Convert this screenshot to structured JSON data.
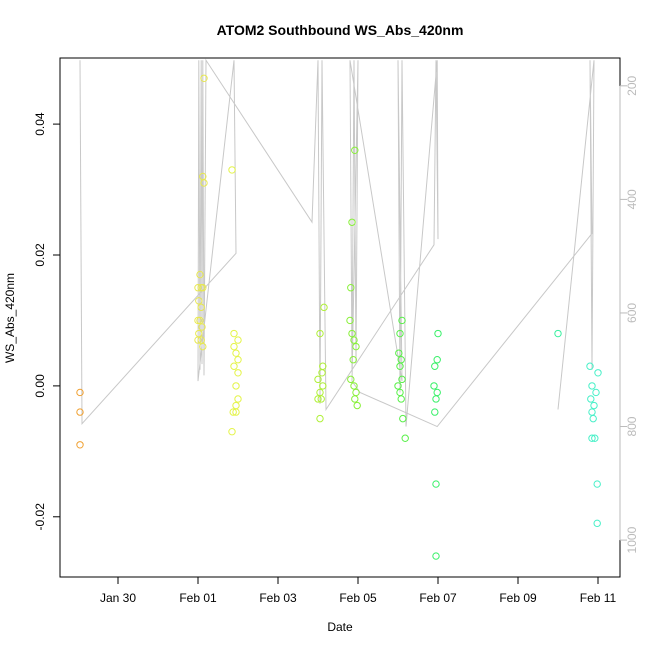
{
  "chart_data": {
    "type": "scatter",
    "title": "ATOM2 Southbound WS_Abs_420nm",
    "xlabel": "Date",
    "ylabel": "WS_Abs_420nm",
    "xlim": [
      28.55,
      42.55
    ],
    "xticks": [
      {
        "value": 30,
        "label": "Jan 30"
      },
      {
        "value": 32,
        "label": "Feb 01"
      },
      {
        "value": 34,
        "label": "Feb 03"
      },
      {
        "value": 36,
        "label": "Feb 05"
      },
      {
        "value": 38,
        "label": "Feb 07"
      },
      {
        "value": 40,
        "label": "Feb 09"
      },
      {
        "value": 42,
        "label": "Feb 11"
      }
    ],
    "ylim": [
      -0.0292,
      0.0501
    ],
    "yticks": [
      -0.02,
      {
        "value": 0,
        "label": "0.00"
      },
      0.02,
      0.04
    ],
    "y2lim": [
      1065,
      151
    ],
    "y2ticks": [
      200,
      400,
      600,
      800,
      1000
    ],
    "y2color": "#bbbbbb",
    "series": [
      {
        "color": "#f0a030",
        "x": [
          29.05,
          29.05,
          29.05
        ],
        "values": [
          -0.001,
          -0.004,
          -0.009
        ]
      },
      {
        "color": "#e8e850",
        "x": [
          32.15,
          32.12,
          32.15,
          32.05,
          32.0,
          32.08,
          32.12,
          32.02,
          32.08,
          32.0,
          32.05,
          32.1,
          32.02,
          32.08,
          32.0,
          32.12
        ],
        "values": [
          0.047,
          0.032,
          0.031,
          0.017,
          0.015,
          0.015,
          0.015,
          0.013,
          0.012,
          0.01,
          0.01,
          0.009,
          0.008,
          0.007,
          0.007,
          0.006
        ]
      },
      {
        "color": "#e4f448",
        "x": [
          32.85,
          32.9,
          33.0,
          32.9,
          32.95,
          33.0,
          32.9,
          33.0,
          32.95,
          33.0,
          32.95,
          32.88,
          32.95,
          32.85
        ],
        "values": [
          0.033,
          0.008,
          0.007,
          0.006,
          0.005,
          0.004,
          0.003,
          0.002,
          0.0,
          -0.002,
          -0.003,
          -0.004,
          -0.004,
          -0.007
        ]
      },
      {
        "color": "#b0f038",
        "x": [
          35.15,
          35.05,
          35.12,
          35.1,
          35.0,
          35.12,
          35.05,
          35.0,
          35.08,
          35.05
        ],
        "values": [
          0.012,
          0.008,
          0.003,
          0.002,
          0.001,
          0.0,
          -0.001,
          -0.002,
          -0.002,
          -0.005
        ]
      },
      {
        "color": "#88f038",
        "x": [
          35.92,
          35.85,
          35.82,
          35.8,
          35.85,
          35.9,
          35.95,
          35.88,
          35.82,
          35.9,
          35.95,
          35.92,
          35.98
        ],
        "values": [
          0.036,
          0.025,
          0.015,
          0.01,
          0.008,
          0.007,
          0.006,
          0.004,
          0.001,
          0.0,
          -0.001,
          -0.002,
          -0.003
        ]
      },
      {
        "color": "#58f048",
        "x": [
          37.1,
          37.05,
          37.02,
          37.08,
          37.05,
          37.1,
          37.0,
          37.05,
          37.08,
          37.12,
          37.18
        ],
        "values": [
          0.01,
          0.008,
          0.005,
          0.004,
          0.003,
          0.001,
          0.0,
          -0.001,
          -0.002,
          -0.005,
          -0.008
        ]
      },
      {
        "color": "#38f068",
        "x": [
          38.0,
          37.98,
          37.92,
          37.9,
          37.98,
          37.95,
          37.92,
          37.95,
          37.95
        ],
        "values": [
          0.008,
          0.004,
          0.003,
          0.0,
          -0.001,
          -0.002,
          -0.004,
          -0.015,
          -0.026
        ]
      },
      {
        "color": "#38f0a0",
        "x": [
          41.0
        ],
        "values": [
          0.008
        ]
      },
      {
        "color": "#48f0c8",
        "x": [
          41.8,
          42.0,
          41.85,
          41.95,
          41.82,
          41.9,
          41.85,
          41.88,
          41.85,
          41.92,
          41.98,
          41.98
        ],
        "values": [
          0.003,
          0.002,
          0.0,
          -0.001,
          -0.002,
          -0.003,
          -0.004,
          -0.005,
          -0.008,
          -0.008,
          -0.015,
          -0.021
        ]
      },
      {
        "color": "#c8c8c8",
        "axis": "y2",
        "x": [
          29.05,
          29.1,
          32.95,
          32.9,
          32.0,
          32.02,
          32.05,
          32.08,
          32.1,
          32.12,
          32.15,
          32.2,
          34.85,
          35.0,
          35.05,
          35.1,
          35.2,
          37.9,
          37.95,
          38.0,
          37.98,
          37.2,
          37.1,
          37.05,
          37.0,
          37.1,
          35.8,
          35.85,
          35.9,
          35.95,
          36.0,
          35.85,
          36.05,
          37.98,
          41.85,
          41.8,
          41.85,
          41.9,
          41.0
        ],
        "values": [
          155,
          795,
          495,
          155,
          720,
          155,
          700,
          155,
          690,
          155,
          710,
          155,
          440,
          155,
          760,
          155,
          770,
          480,
          155,
          470,
          155,
          800,
          155,
          740,
          155,
          720,
          155,
          700,
          155,
          690,
          155,
          720,
          740,
          800,
          460,
          155,
          700,
          155,
          770
        ]
      }
    ]
  }
}
